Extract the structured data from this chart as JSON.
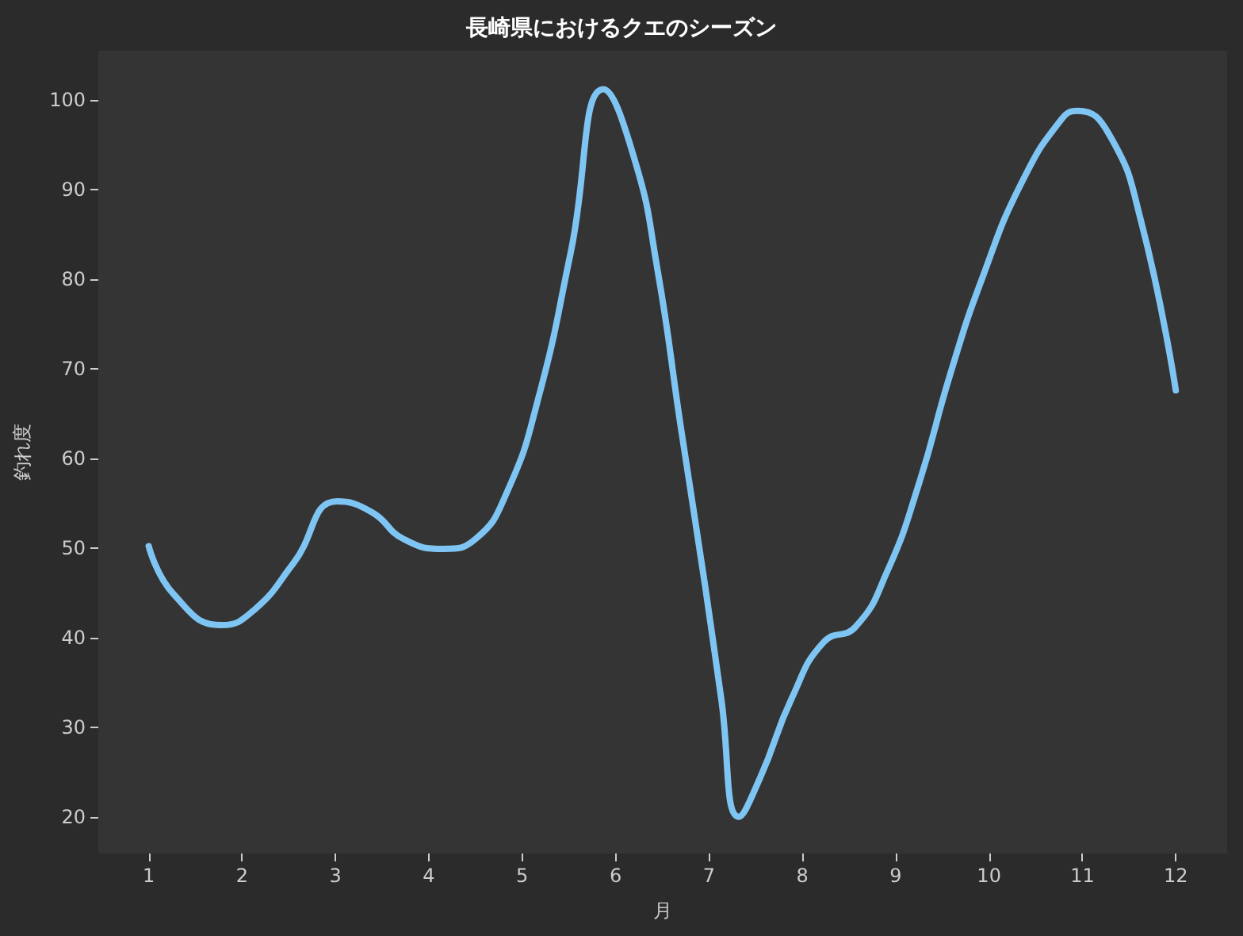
{
  "chart_data": {
    "type": "line",
    "title": "長崎県におけるクエのシーズン",
    "xlabel": "月",
    "ylabel": "釣れ度",
    "x": [
      1.0,
      1.27,
      1.78,
      2.12,
      2.55,
      3.02,
      3.39,
      3.73,
      4.16,
      4.5,
      4.84,
      5.18,
      5.52,
      5.87,
      6.2,
      6.45,
      6.7,
      6.96,
      7.13,
      7.32,
      7.55,
      7.89,
      8.23,
      8.57,
      8.91,
      9.25,
      9.59,
      9.93,
      10.35,
      10.78,
      10.95,
      11.29,
      11.63,
      12.0
    ],
    "series": [
      {
        "color": "#7fc5f4",
        "values": [
          50.2,
          44.8,
          41.4,
          43,
          48.3,
          55.2,
          54,
          51,
          49.9,
          51,
          56.3,
          67,
          83,
          101.2,
          93.5,
          81,
          63.4,
          45.7,
          33.3,
          20,
          24.4,
          33.3,
          39.5,
          41.2,
          47.4,
          57.2,
          69.6,
          80.2,
          90.8,
          97.9,
          98.8,
          96.1,
          86.4,
          67.6
        ]
      }
    ],
    "xlim": [
      0.46,
      12.55
    ],
    "xticks": [
      1,
      2,
      3,
      4,
      5,
      6,
      7,
      8,
      9,
      10,
      11,
      12
    ],
    "ylim": [
      15.9,
      105.5
    ],
    "yticks": [
      20,
      30,
      40,
      50,
      60,
      70,
      80,
      90,
      100
    ],
    "grid": false,
    "marker": "none",
    "line_style": "solid"
  }
}
